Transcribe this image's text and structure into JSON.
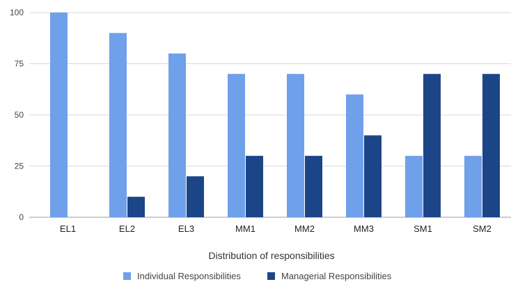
{
  "chart_data": {
    "type": "bar",
    "title": "",
    "xlabel": "Distribution of responsibilities",
    "ylabel": "",
    "categories": [
      "EL1",
      "EL2",
      "EL3",
      "MM1",
      "MM2",
      "MM3",
      "SM1",
      "SM2"
    ],
    "series": [
      {
        "name": "Individual Responsibilities",
        "color": "#6fa0ea",
        "values": [
          100,
          90,
          80,
          70,
          70,
          60,
          30,
          30
        ]
      },
      {
        "name": "Managerial Responsibilities",
        "color": "#1c4587",
        "values": [
          0,
          10,
          20,
          30,
          30,
          40,
          70,
          70
        ]
      }
    ],
    "ylim": [
      0,
      100
    ],
    "yticks": [
      0,
      25,
      50,
      75,
      100
    ],
    "grid": true,
    "legend": "bottom"
  }
}
